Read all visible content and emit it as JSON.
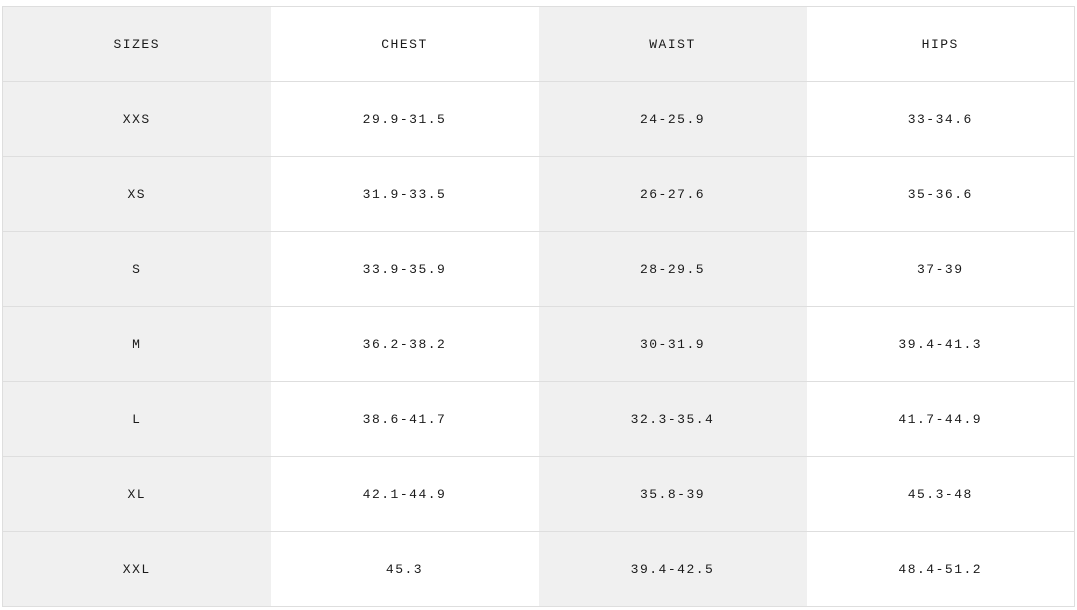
{
  "size_chart": {
    "headers": [
      "SIZES",
      "CHEST",
      "WAIST",
      "HIPS"
    ],
    "shaded_bg": "#f0f0f0",
    "rows": [
      [
        "XXS",
        "29.9-31.5",
        "24-25.9",
        "33-34.6"
      ],
      [
        "XS",
        "31.9-33.5",
        "26-27.6",
        "35-36.6"
      ],
      [
        "S",
        "33.9-35.9",
        "28-29.5",
        "37-39"
      ],
      [
        "M",
        "36.2-38.2",
        "30-31.9",
        "39.4-41.3"
      ],
      [
        "L",
        "38.6-41.7",
        "32.3-35.4",
        "41.7-44.9"
      ],
      [
        "XL",
        "42.1-44.9",
        "35.8-39",
        "45.3-48"
      ],
      [
        "XXL",
        "45.3",
        "39.4-42.5",
        "48.4-51.2"
      ]
    ]
  }
}
